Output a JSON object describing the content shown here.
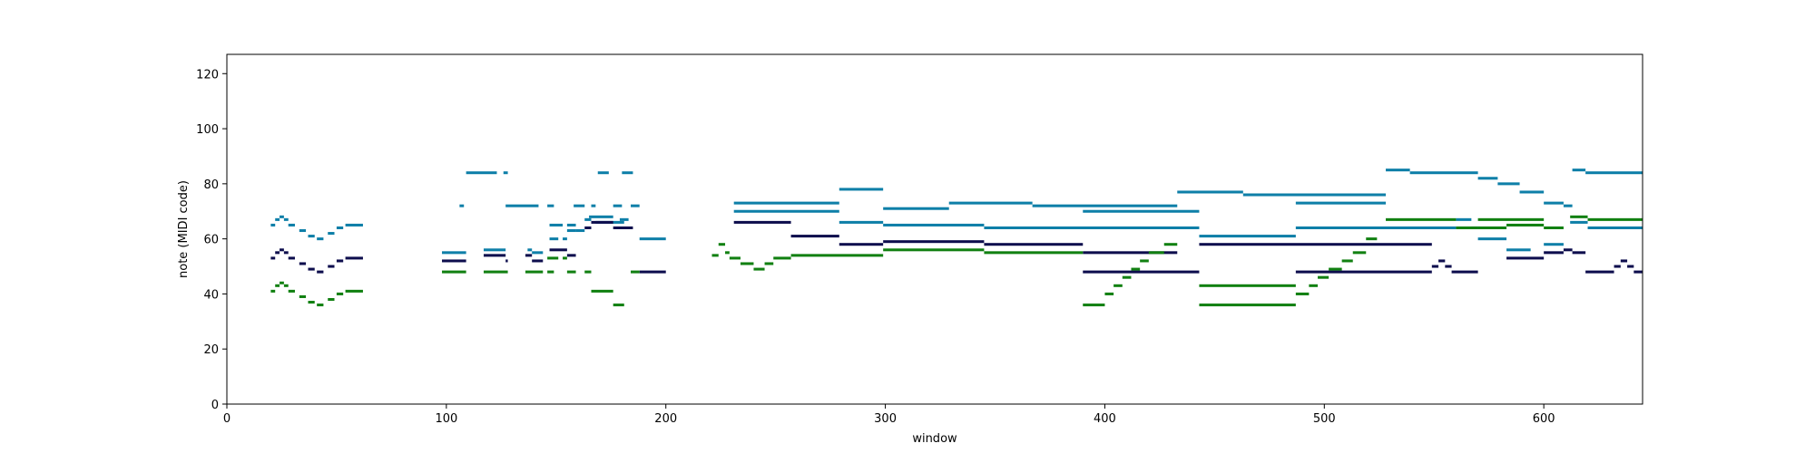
{
  "chart_data": {
    "type": "scatter",
    "title": "",
    "xlabel": "window",
    "ylabel": "note (MIDI code)",
    "xlim": [
      0,
      645
    ],
    "ylim": [
      0,
      127
    ],
    "xticks": [
      0,
      100,
      200,
      300,
      400,
      500,
      600
    ],
    "yticks": [
      0,
      20,
      40,
      60,
      80,
      100,
      120
    ],
    "grid": false,
    "legend": "none",
    "series": [
      {
        "color": "#0e7fa8",
        "segments": [
          [
            20,
            22,
            65
          ],
          [
            22,
            24,
            67
          ],
          [
            24,
            26,
            68
          ],
          [
            26,
            28,
            67
          ],
          [
            28,
            31,
            65
          ],
          [
            33,
            36,
            63
          ],
          [
            37,
            40,
            61
          ],
          [
            41,
            44,
            60
          ],
          [
            46,
            49,
            62
          ],
          [
            50,
            53,
            64
          ],
          [
            54,
            62,
            65
          ],
          [
            98,
            109,
            55
          ],
          [
            106,
            108,
            72
          ],
          [
            109,
            123,
            84
          ],
          [
            126,
            128,
            84
          ],
          [
            117,
            127,
            56
          ],
          [
            127,
            142,
            72
          ],
          [
            137,
            139,
            56
          ],
          [
            139,
            144,
            55
          ],
          [
            146,
            149,
            72
          ],
          [
            147,
            151,
            60
          ],
          [
            153,
            155,
            60
          ],
          [
            147,
            153,
            65
          ],
          [
            155,
            159,
            65
          ],
          [
            158,
            163,
            72
          ],
          [
            155,
            159,
            63
          ],
          [
            159,
            163,
            63
          ],
          [
            163,
            166,
            67
          ],
          [
            166,
            168,
            72
          ],
          [
            165,
            172,
            68
          ],
          [
            172,
            176,
            68
          ],
          [
            168,
            181,
            66
          ],
          [
            176,
            180,
            72
          ],
          [
            179,
            183,
            67
          ],
          [
            180,
            185,
            84
          ],
          [
            169,
            174,
            84
          ],
          [
            184,
            188,
            72
          ],
          [
            188,
            200,
            60
          ],
          [
            231,
            279,
            73
          ],
          [
            231,
            279,
            70
          ],
          [
            279,
            299,
            78
          ],
          [
            279,
            299,
            66
          ],
          [
            299,
            329,
            71
          ],
          [
            299,
            345,
            65
          ],
          [
            329,
            367,
            73
          ],
          [
            367,
            433,
            72
          ],
          [
            345,
            443,
            64
          ],
          [
            390,
            443,
            70
          ],
          [
            433,
            463,
            77
          ],
          [
            443,
            487,
            61
          ],
          [
            463,
            528,
            76
          ],
          [
            487,
            560,
            64
          ],
          [
            487,
            528,
            73
          ],
          [
            528,
            539,
            85
          ],
          [
            539,
            570,
            84
          ],
          [
            570,
            579,
            82
          ],
          [
            579,
            589,
            80
          ],
          [
            589,
            600,
            77
          ],
          [
            570,
            583,
            60
          ],
          [
            583,
            594,
            56
          ],
          [
            600,
            609,
            73
          ],
          [
            600,
            609,
            58
          ],
          [
            609,
            613,
            72
          ],
          [
            613,
            619,
            85
          ],
          [
            619,
            645,
            84
          ],
          [
            620,
            645,
            64
          ],
          [
            612,
            620,
            66
          ],
          [
            560,
            567,
            67
          ],
          [
            567,
            571,
            64
          ]
        ]
      },
      {
        "color": "#0d0d4d",
        "segments": [
          [
            20,
            22,
            53
          ],
          [
            22,
            24,
            55
          ],
          [
            24,
            26,
            56
          ],
          [
            26,
            28,
            55
          ],
          [
            28,
            31,
            53
          ],
          [
            33,
            36,
            51
          ],
          [
            37,
            40,
            49
          ],
          [
            41,
            44,
            48
          ],
          [
            46,
            49,
            50
          ],
          [
            50,
            53,
            52
          ],
          [
            54,
            62,
            53
          ],
          [
            98,
            109,
            52
          ],
          [
            117,
            127,
            54
          ],
          [
            127,
            128,
            52
          ],
          [
            136,
            139,
            54
          ],
          [
            139,
            144,
            52
          ],
          [
            147,
            155,
            56
          ],
          [
            155,
            159,
            54
          ],
          [
            163,
            166,
            64
          ],
          [
            166,
            172,
            66
          ],
          [
            172,
            176,
            66
          ],
          [
            176,
            185,
            64
          ],
          [
            188,
            200,
            48
          ],
          [
            231,
            257,
            66
          ],
          [
            257,
            279,
            61
          ],
          [
            279,
            299,
            58
          ],
          [
            299,
            345,
            59
          ],
          [
            345,
            390,
            58
          ],
          [
            390,
            433,
            55
          ],
          [
            390,
            443,
            48
          ],
          [
            443,
            549,
            58
          ],
          [
            487,
            549,
            48
          ],
          [
            549,
            552,
            50
          ],
          [
            552,
            555,
            52
          ],
          [
            555,
            558,
            50
          ],
          [
            558,
            570,
            48
          ],
          [
            583,
            600,
            53
          ],
          [
            600,
            609,
            55
          ],
          [
            609,
            613,
            56
          ],
          [
            613,
            619,
            55
          ],
          [
            619,
            632,
            48
          ],
          [
            632,
            635,
            50
          ],
          [
            635,
            638,
            52
          ],
          [
            638,
            641,
            50
          ],
          [
            641,
            645,
            48
          ]
        ]
      },
      {
        "color": "#118011",
        "segments": [
          [
            20,
            22,
            41
          ],
          [
            22,
            24,
            43
          ],
          [
            24,
            26,
            44
          ],
          [
            26,
            28,
            43
          ],
          [
            28,
            31,
            41
          ],
          [
            33,
            36,
            39
          ],
          [
            37,
            40,
            37
          ],
          [
            41,
            44,
            36
          ],
          [
            46,
            49,
            38
          ],
          [
            50,
            53,
            40
          ],
          [
            54,
            62,
            41
          ],
          [
            98,
            109,
            48
          ],
          [
            117,
            128,
            48
          ],
          [
            136,
            144,
            48
          ],
          [
            146,
            149,
            48
          ],
          [
            146,
            151,
            53
          ],
          [
            153,
            155,
            53
          ],
          [
            155,
            159,
            48
          ],
          [
            163,
            166,
            48
          ],
          [
            166,
            172,
            41
          ],
          [
            172,
            176,
            41
          ],
          [
            176,
            181,
            36
          ],
          [
            184,
            188,
            48
          ],
          [
            221,
            224,
            54
          ],
          [
            224,
            227,
            58
          ],
          [
            227,
            229,
            55
          ],
          [
            229,
            234,
            53
          ],
          [
            234,
            240,
            51
          ],
          [
            240,
            245,
            49
          ],
          [
            245,
            249,
            51
          ],
          [
            249,
            257,
            53
          ],
          [
            257,
            299,
            54
          ],
          [
            299,
            345,
            56
          ],
          [
            345,
            390,
            55
          ],
          [
            390,
            400,
            36
          ],
          [
            400,
            404,
            40
          ],
          [
            404,
            408,
            43
          ],
          [
            408,
            412,
            46
          ],
          [
            412,
            416,
            49
          ],
          [
            416,
            420,
            52
          ],
          [
            420,
            427,
            55
          ],
          [
            427,
            433,
            58
          ],
          [
            443,
            487,
            43
          ],
          [
            443,
            487,
            36
          ],
          [
            487,
            493,
            40
          ],
          [
            493,
            497,
            43
          ],
          [
            497,
            502,
            46
          ],
          [
            502,
            508,
            49
          ],
          [
            508,
            513,
            52
          ],
          [
            513,
            519,
            55
          ],
          [
            519,
            524,
            60
          ],
          [
            528,
            560,
            67
          ],
          [
            560,
            570,
            64
          ],
          [
            570,
            600,
            67
          ],
          [
            570,
            583,
            64
          ],
          [
            583,
            600,
            65
          ],
          [
            600,
            609,
            64
          ],
          [
            612,
            620,
            68
          ],
          [
            620,
            645,
            67
          ]
        ]
      }
    ]
  }
}
